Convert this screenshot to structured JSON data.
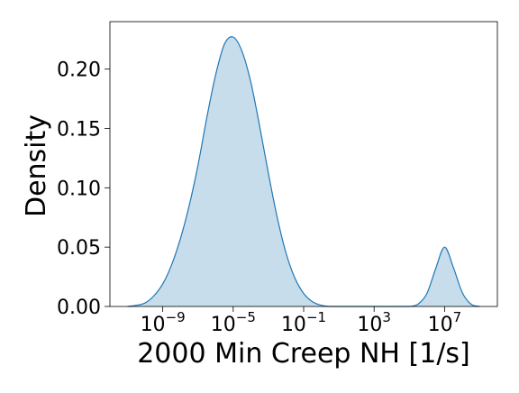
{
  "chart_data": {
    "type": "area",
    "title": "",
    "xlabel": "2000 Min Creep NH [1/s]",
    "ylabel": "Density",
    "x_scale": "log",
    "x_exponent_range": [
      -12,
      10
    ],
    "ylim": [
      0,
      0.24
    ],
    "grid": false,
    "fill_color": "#1f77b4",
    "fill_opacity": 0.25,
    "line_color": "#1f77b4",
    "x_ticks": [
      {
        "value": 1e-09,
        "label_base": "10",
        "label_exp": "−9"
      },
      {
        "value": 1e-05,
        "label_base": "10",
        "label_exp": "−5"
      },
      {
        "value": 0.1,
        "label_base": "10",
        "label_exp": "−1"
      },
      {
        "value": 1000,
        "label_base": "10",
        "label_exp": "3"
      },
      {
        "value": 10000000.0,
        "label_base": "10",
        "label_exp": "7"
      }
    ],
    "y_ticks": [
      {
        "value": 0.0,
        "label": "0.00"
      },
      {
        "value": 0.05,
        "label": "0.05"
      },
      {
        "value": 0.1,
        "label": "0.10"
      },
      {
        "value": 0.15,
        "label": "0.15"
      },
      {
        "value": 0.2,
        "label": "0.20"
      }
    ],
    "series": [
      {
        "x": [
          1e-11,
          3.16e-11,
          1e-10,
          3.16e-10,
          1e-09,
          3.16e-09,
          1e-08,
          3.16e-08,
          1e-07,
          3.16e-07,
          1e-06,
          3.16e-06,
          1e-05,
          3.16e-05,
          0.0001,
          0.000316,
          0.001,
          0.00316,
          0.01,
          0.0316,
          0.1,
          0.316,
          1,
          3.16,
          10,
          31.6,
          100,
          316,
          1000,
          3160,
          10000,
          31600,
          100000,
          316000,
          1000000,
          3160000,
          10000000,
          31600000,
          100000000,
          316000000,
          1000000000
        ],
        "y": [
          0.0,
          0.001,
          0.003,
          0.009,
          0.019,
          0.035,
          0.057,
          0.085,
          0.119,
          0.159,
          0.195,
          0.221,
          0.227,
          0.215,
          0.189,
          0.152,
          0.112,
          0.075,
          0.045,
          0.024,
          0.011,
          0.004,
          0.001,
          0.0,
          0.0,
          0.0,
          0.0,
          0.0,
          0.0,
          0.0,
          0.0,
          0.0,
          0.0,
          0.002,
          0.011,
          0.032,
          0.05,
          0.033,
          0.012,
          0.002,
          0.0
        ]
      }
    ]
  }
}
